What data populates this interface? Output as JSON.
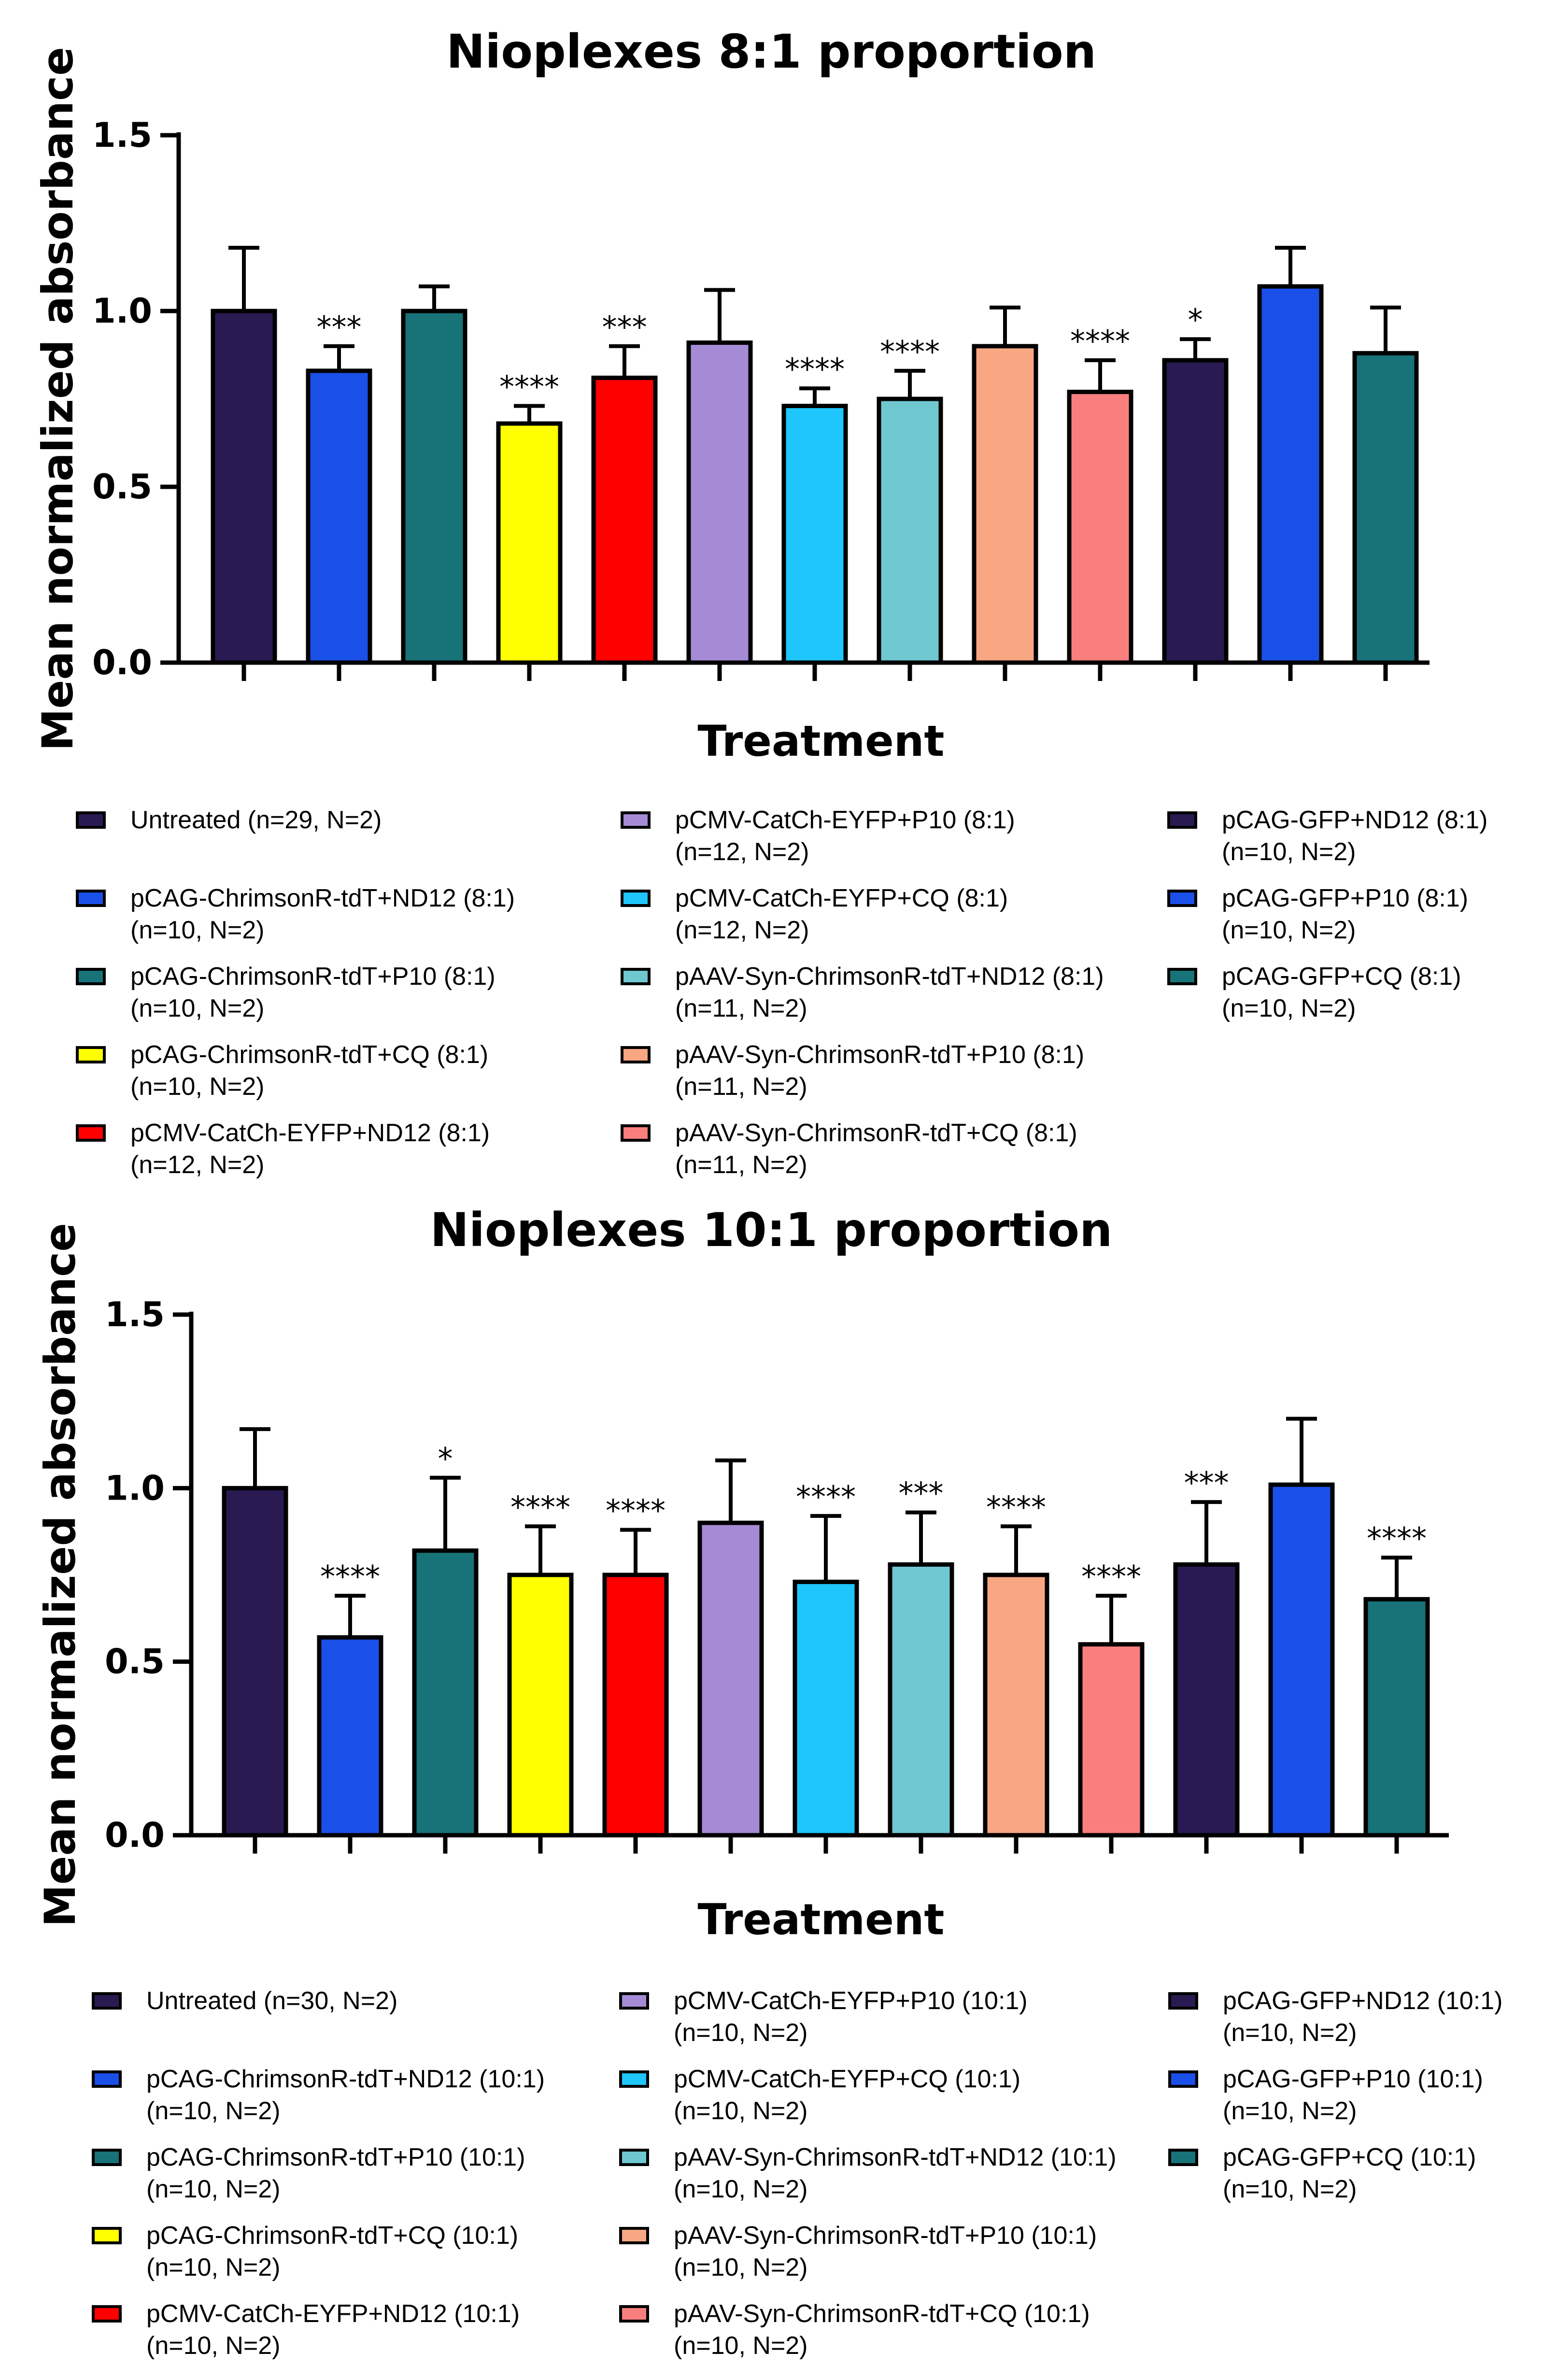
{
  "chart_data": [
    {
      "type": "bar",
      "title": "Nioplexes 8:1 proportion",
      "xlabel": "Treatment",
      "ylabel": "Mean normalized absorbance",
      "ylim": [
        0,
        1.5
      ],
      "yticks": [
        "0.0",
        "0.5",
        "1.0",
        "1.5"
      ],
      "grid": false,
      "legend_position": "bottom",
      "categories": [
        "Untreated (n=29, N=2)",
        "pCAG-ChrimsonR-tdT+ND12 (8:1) (n=10, N=2)",
        "pCAG-ChrimsonR-tdT+P10 (8:1) (n=10, N=2)",
        "pCAG-ChrimsonR-tdT+CQ (8:1) (n=10, N=2)",
        "pCMV-CatCh-EYFP+ND12 (8:1) (n=12, N=2)",
        "pCMV-CatCh-EYFP+P10 (8:1) (n=12, N=2)",
        "pCMV-CatCh-EYFP+CQ (8:1) (n=12, N=2)",
        "pAAV-Syn-ChrimsonR-tdT+ND12 (8:1) (n=11, N=2)",
        "pAAV-Syn-ChrimsonR-tdT+P10 (8:1) (n=11, N=2)",
        "pAAV-Syn-ChrimsonR-tdT+CQ (8:1) (n=11, N=2)",
        "pCAG-GFP+ND12 (8:1) (n=10, N=2)",
        "pCAG-GFP+P10 (8:1) (n=10, N=2)",
        "pCAG-GFP+CQ (8:1) (n=10, N=2)"
      ],
      "values": [
        1.0,
        0.83,
        1.0,
        0.68,
        0.81,
        0.91,
        0.73,
        0.75,
        0.9,
        0.77,
        0.86,
        1.07,
        0.88
      ],
      "errors": [
        0.18,
        0.07,
        0.07,
        0.05,
        0.09,
        0.15,
        0.05,
        0.08,
        0.11,
        0.09,
        0.06,
        0.11,
        0.13
      ],
      "significance": [
        "",
        "***",
        "",
        "****",
        "***",
        "",
        "****",
        "****",
        "",
        "****",
        "*",
        "",
        ""
      ],
      "colors": [
        "#2a1a52",
        "#1a50e8",
        "#177377",
        "#ffff00",
        "#ff0000",
        "#a58bd6",
        "#1ec6fb",
        "#6fc8d0",
        "#f9a683",
        "#f97f7f",
        "#2a1a52",
        "#1a50e8",
        "#177377"
      ],
      "legend": [
        {
          "line1": "Untreated (n=29, N=2)",
          "line2": ""
        },
        {
          "line1": "pCAG-ChrimsonR-tdT+ND12 (8:1)",
          "line2": "(n=10, N=2)"
        },
        {
          "line1": "pCAG-ChrimsonR-tdT+P10 (8:1)",
          "line2": "(n=10, N=2)"
        },
        {
          "line1": "pCAG-ChrimsonR-tdT+CQ (8:1)",
          "line2": "(n=10, N=2)"
        },
        {
          "line1": "pCMV-CatCh-EYFP+ND12 (8:1)",
          "line2": "(n=12, N=2)"
        },
        {
          "line1": "pCMV-CatCh-EYFP+P10 (8:1)",
          "line2": "(n=12, N=2)"
        },
        {
          "line1": "pCMV-CatCh-EYFP+CQ (8:1)",
          "line2": "(n=12, N=2)"
        },
        {
          "line1": "pAAV-Syn-ChrimsonR-tdT+ND12 (8:1)",
          "line2": "(n=11, N=2)"
        },
        {
          "line1": "pAAV-Syn-ChrimsonR-tdT+P10 (8:1)",
          "line2": "(n=11, N=2)"
        },
        {
          "line1": "pAAV-Syn-ChrimsonR-tdT+CQ (8:1)",
          "line2": "(n=11, N=2)"
        },
        {
          "line1": "pCAG-GFP+ND12 (8:1)",
          "line2": "(n=10, N=2)"
        },
        {
          "line1": "pCAG-GFP+P10 (8:1)",
          "line2": "(n=10, N=2)"
        },
        {
          "line1": "pCAG-GFP+CQ (8:1)",
          "line2": "(n=10, N=2)"
        }
      ]
    },
    {
      "type": "bar",
      "title": "Nioplexes 10:1 proportion",
      "xlabel": "Treatment",
      "ylabel": "Mean normalized absorbance",
      "ylim": [
        0,
        1.5
      ],
      "yticks": [
        "0.0",
        "0.5",
        "1.0",
        "1.5"
      ],
      "grid": false,
      "legend_position": "bottom",
      "categories": [
        "Untreated (n=30, N=2)",
        "pCAG-ChrimsonR-tdT+ND12 (10:1) (n=10, N=2)",
        "pCAG-ChrimsonR-tdT+P10 (10:1) (n=10, N=2)",
        "pCAG-ChrimsonR-tdT+CQ (10:1) (n=10, N=2)",
        "pCMV-CatCh-EYFP+ND12 (10:1) (n=10, N=2)",
        "pCMV-CatCh-EYFP+P10 (10:1) (n=10, N=2)",
        "pCMV-CatCh-EYFP+CQ (10:1) (n=10, N=2)",
        "pAAV-Syn-ChrimsonR-tdT+ND12 (10:1) (n=10, N=2)",
        "pAAV-Syn-ChrimsonR-tdT+P10 (10:1) (n=10, N=2)",
        "pAAV-Syn-ChrimsonR-tdT+CQ (10:1) (n=10, N=2)",
        "pCAG-GFP+ND12 (10:1) (n=10, N=2)",
        "pCAG-GFP+P10 (10:1) (n=10, N=2)",
        "pCAG-GFP+CQ (10:1) (n=10, N=2)"
      ],
      "values": [
        1.0,
        0.57,
        0.82,
        0.75,
        0.75,
        0.9,
        0.73,
        0.78,
        0.75,
        0.55,
        0.78,
        1.01,
        0.68
      ],
      "errors": [
        0.17,
        0.12,
        0.21,
        0.14,
        0.13,
        0.18,
        0.19,
        0.15,
        0.14,
        0.14,
        0.18,
        0.19,
        0.12
      ],
      "significance": [
        "",
        "****",
        "*",
        "****",
        "****",
        "",
        "****",
        "***",
        "****",
        "****",
        "***",
        "",
        "****"
      ],
      "colors": [
        "#2a1a52",
        "#1a50e8",
        "#177377",
        "#ffff00",
        "#ff0000",
        "#a58bd6",
        "#1ec6fb",
        "#6fc8d0",
        "#f9a683",
        "#f97f7f",
        "#2a1a52",
        "#1a50e8",
        "#177377"
      ],
      "legend": [
        {
          "line1": "Untreated (n=30, N=2)",
          "line2": ""
        },
        {
          "line1": "pCAG-ChrimsonR-tdT+ND12 (10:1)",
          "line2": "(n=10, N=2)"
        },
        {
          "line1": "pCAG-ChrimsonR-tdT+P10 (10:1)",
          "line2": "(n=10, N=2)"
        },
        {
          "line1": "pCAG-ChrimsonR-tdT+CQ (10:1)",
          "line2": "(n=10, N=2)"
        },
        {
          "line1": "pCMV-CatCh-EYFP+ND12 (10:1)",
          "line2": "(n=10, N=2)"
        },
        {
          "line1": "pCMV-CatCh-EYFP+P10 (10:1)",
          "line2": "(n=10, N=2)"
        },
        {
          "line1": "pCMV-CatCh-EYFP+CQ (10:1)",
          "line2": "(n=10, N=2)"
        },
        {
          "line1": "pAAV-Syn-ChrimsonR-tdT+ND12 (10:1)",
          "line2": "(n=10, N=2)"
        },
        {
          "line1": "pAAV-Syn-ChrimsonR-tdT+P10 (10:1)",
          "line2": "(n=10, N=2)"
        },
        {
          "line1": "pAAV-Syn-ChrimsonR-tdT+CQ (10:1)",
          "line2": "(n=10, N=2)"
        },
        {
          "line1": "pCAG-GFP+ND12 (10:1)",
          "line2": "(n=10, N=2)"
        },
        {
          "line1": "pCAG-GFP+P10 (10:1)",
          "line2": "(n=10, N=2)"
        },
        {
          "line1": "pCAG-GFP+CQ (10:1)",
          "line2": "(n=10, N=2)"
        }
      ]
    }
  ]
}
